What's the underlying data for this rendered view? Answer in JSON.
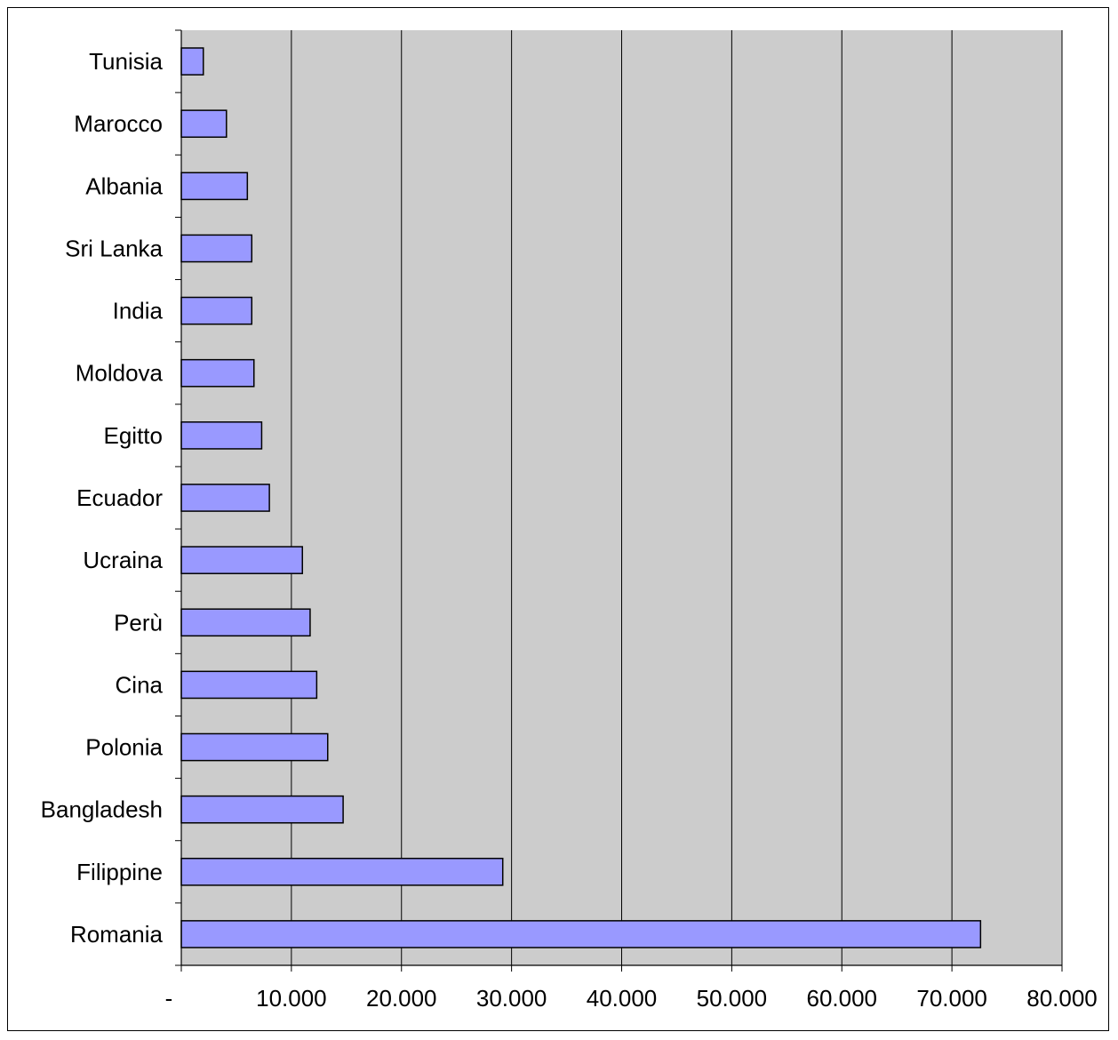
{
  "chart_data": {
    "type": "bar",
    "orientation": "horizontal",
    "title": "",
    "xlabel": "",
    "ylabel": "",
    "categories": [
      "Tunisia",
      "Marocco",
      "Albania",
      "Sri Lanka",
      "India",
      "Moldova",
      "Egitto",
      "Ecuador",
      "Ucraina",
      "Perù",
      "Cina",
      "Polonia",
      "Bangladesh",
      "Filippine",
      "Romania"
    ],
    "values": [
      2000,
      4100,
      6000,
      6400,
      6400,
      6600,
      7300,
      8000,
      11000,
      11700,
      12300,
      13300,
      14700,
      29200,
      72600
    ],
    "xlim": [
      0,
      80000
    ],
    "x_ticks": [
      0,
      10000,
      20000,
      30000,
      40000,
      50000,
      60000,
      70000,
      80000
    ],
    "x_tick_labels": [
      "-",
      "10.000",
      "20.000",
      "30.000",
      "40.000",
      "50.000",
      "60.000",
      "70.000",
      "80.000"
    ],
    "grid": "vertical",
    "legend": "none",
    "colors": {
      "bar_fill": "#9999ff",
      "bar_stroke": "#000000",
      "plot_background": "#cccccc",
      "gridline": "#000000"
    }
  }
}
